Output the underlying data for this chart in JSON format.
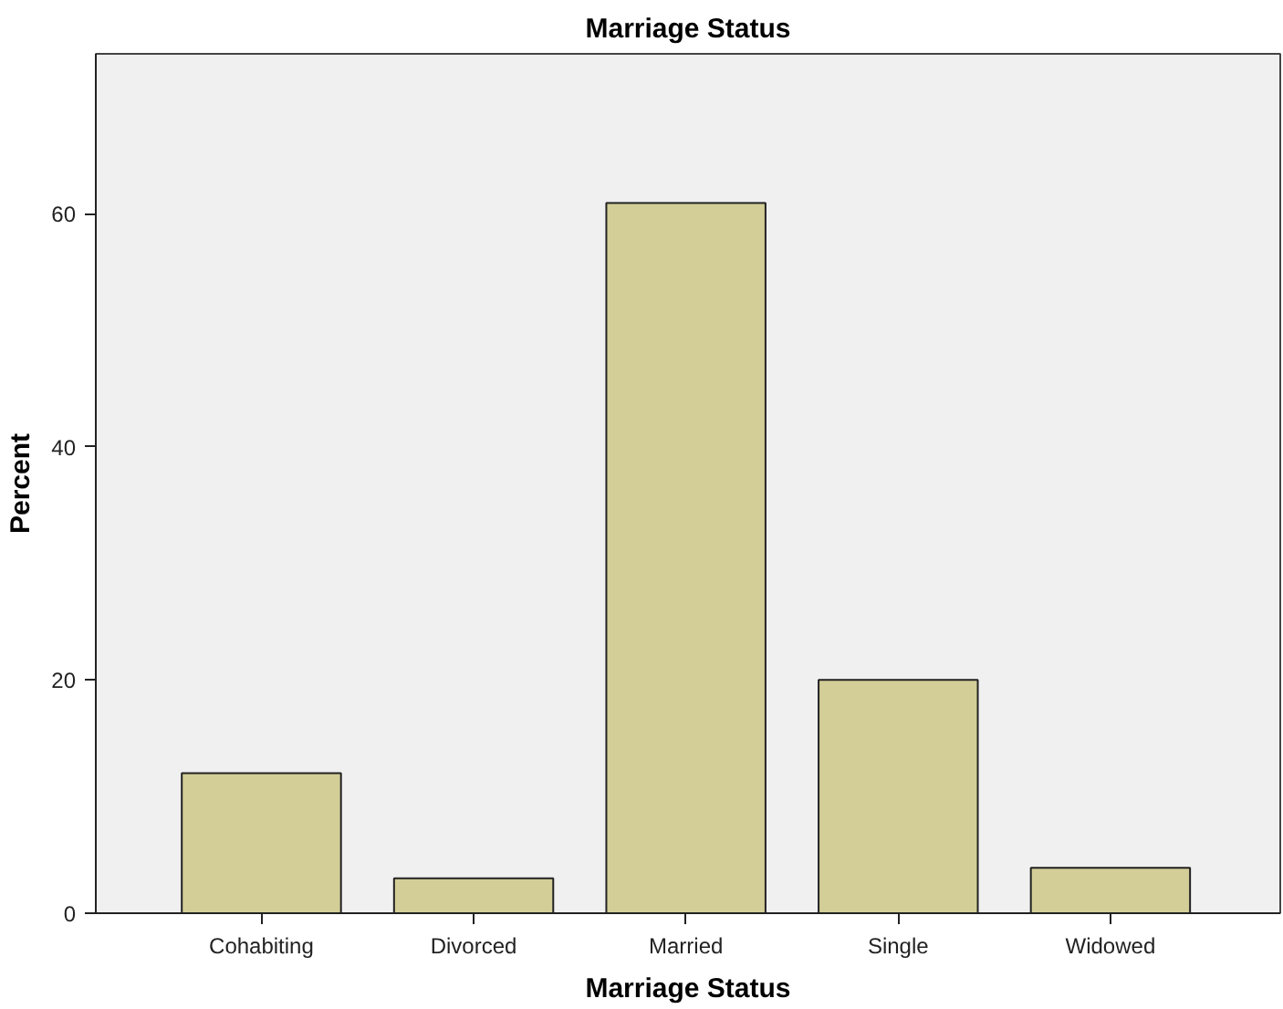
{
  "chart_data": {
    "type": "bar",
    "title": "Marriage Status",
    "xlabel": "Marriage Status",
    "ylabel": "Percent",
    "categories": [
      "Cohabiting",
      "Divorced",
      "Married",
      "Single",
      "Widowed"
    ],
    "values": [
      12.0,
      3.0,
      60.9,
      20.0,
      3.9
    ],
    "color": "#d3ce97",
    "ylim": [
      0,
      73.7
    ],
    "yticks": [
      0,
      20,
      40,
      60
    ],
    "grid": false
  }
}
